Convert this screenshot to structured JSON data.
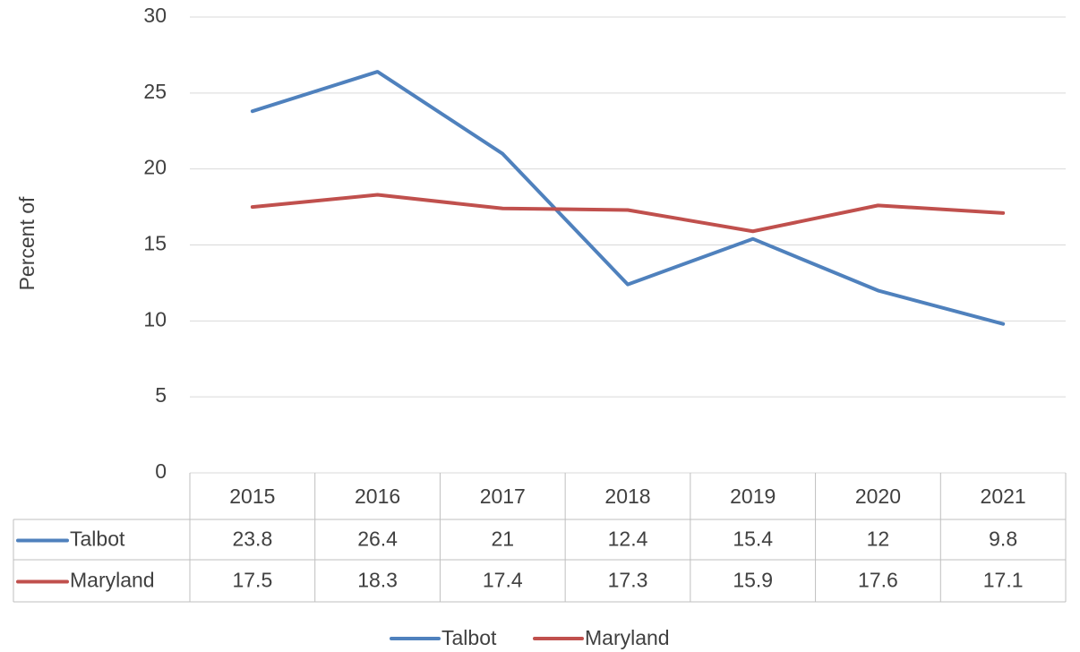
{
  "chart_data": {
    "type": "line",
    "y_label": "Percent of",
    "categories": [
      "2015",
      "2016",
      "2017",
      "2018",
      "2019",
      "2020",
      "2021"
    ],
    "series": [
      {
        "name": "Talbot",
        "color": "#4f81bd",
        "values": [
          23.8,
          26.4,
          21,
          12.4,
          15.4,
          12,
          9.8
        ]
      },
      {
        "name": "Maryland",
        "color": "#c0504d",
        "values": [
          17.5,
          18.3,
          17.4,
          17.3,
          15.9,
          17.6,
          17.1
        ]
      }
    ],
    "ylim": [
      0,
      30
    ],
    "yticks": [
      0,
      5,
      10,
      15,
      20,
      25,
      30
    ],
    "grid": true,
    "legend": "bottom",
    "data_table": true
  }
}
